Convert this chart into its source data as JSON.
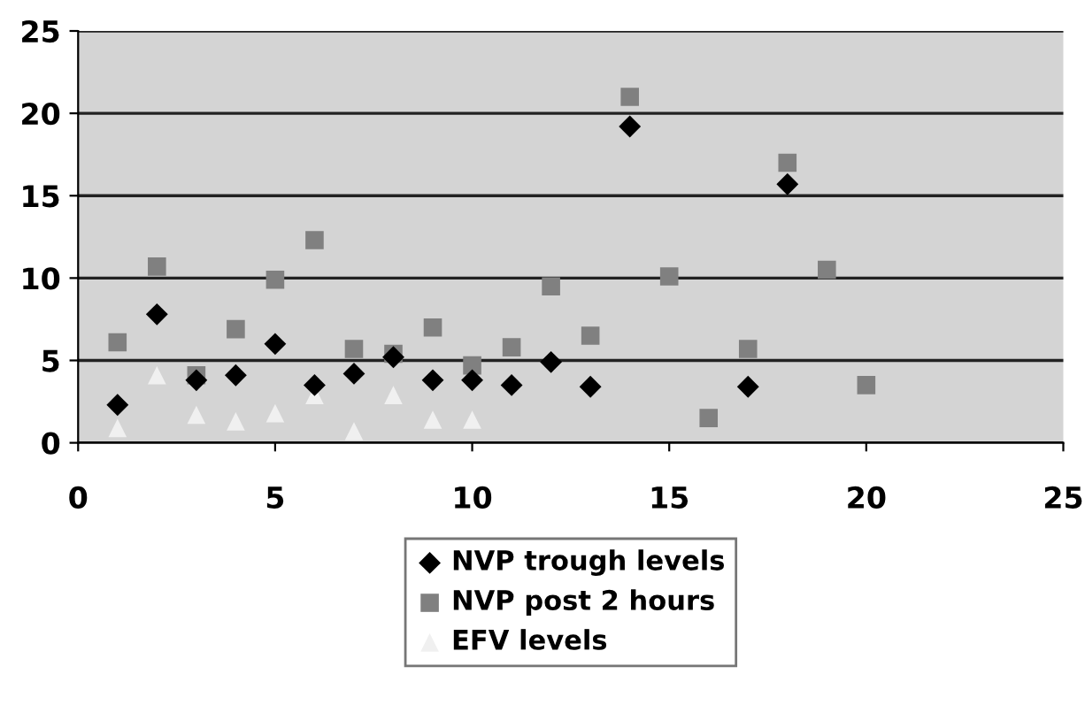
{
  "chart_data": {
    "type": "scatter",
    "x": [
      1,
      2,
      3,
      4,
      5,
      6,
      7,
      8,
      9,
      10,
      11,
      12,
      13,
      14,
      15,
      16,
      17,
      18,
      19,
      20
    ],
    "series": [
      {
        "name": "NVP trough levels",
        "color": "#000000",
        "marker": "diamond",
        "values": [
          2.3,
          7.8,
          3.8,
          4.1,
          6.0,
          3.5,
          4.2,
          5.2,
          3.8,
          3.8,
          3.5,
          4.9,
          3.4,
          19.2,
          null,
          null,
          3.4,
          15.7,
          null,
          null
        ]
      },
      {
        "name": "NVP post 2 hours",
        "color": "#808080",
        "marker": "square",
        "values": [
          6.1,
          10.7,
          4.1,
          6.9,
          9.9,
          12.3,
          5.7,
          5.4,
          7.0,
          4.7,
          5.8,
          9.5,
          6.5,
          21.0,
          10.1,
          1.5,
          5.7,
          17.0,
          10.5,
          3.5
        ]
      },
      {
        "name": "EFV levels",
        "color": "#f0f0f0",
        "marker": "triangle",
        "values": [
          0.9,
          4.1,
          1.7,
          1.3,
          1.8,
          2.9,
          0.7,
          2.9,
          1.4,
          1.4,
          null,
          null,
          null,
          null,
          null,
          null,
          null,
          null,
          null,
          null
        ]
      }
    ],
    "xlim": [
      0,
      25
    ],
    "xticks": [
      0,
      5,
      10,
      15,
      20,
      25
    ],
    "ylim": [
      0,
      25
    ],
    "yticks": [
      0,
      5,
      10,
      15,
      20,
      25
    ],
    "grid": "y",
    "legend": "bottom"
  }
}
